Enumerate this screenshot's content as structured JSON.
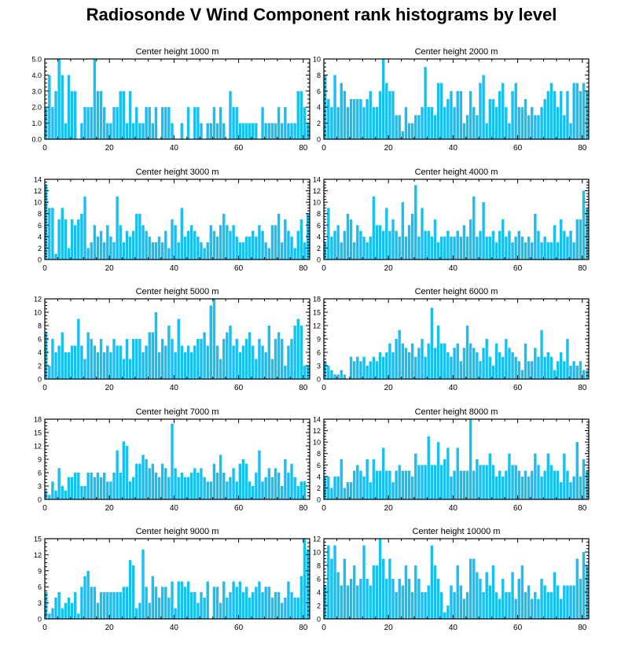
{
  "title": "Radiosonde V Wind Component rank histograms by level",
  "colors": {
    "bar": "#18bff0",
    "axis": "#000000",
    "background": "#ffffff"
  },
  "chart_data": [
    {
      "type": "bar",
      "title": "Center height 1000 m",
      "xlim": [
        0,
        82
      ],
      "ylim": [
        0,
        5
      ],
      "xticks": [
        0,
        20,
        40,
        60,
        80
      ],
      "yticks": [
        0,
        1,
        2,
        3,
        4,
        5
      ],
      "ytick_decimals": 1,
      "values": [
        2,
        4,
        2,
        3,
        5,
        4,
        1,
        4,
        3,
        3,
        0,
        1,
        2,
        2,
        2,
        5,
        3,
        3,
        2,
        1,
        1,
        2,
        2,
        3,
        3,
        1,
        3,
        1,
        2,
        1,
        1,
        2,
        2,
        1,
        2,
        0,
        2,
        2,
        2,
        1,
        0,
        0,
        1,
        0,
        2,
        0,
        2,
        2,
        1,
        0,
        1,
        1,
        2,
        1,
        2,
        1,
        0,
        3,
        2,
        2,
        1,
        1,
        1,
        1,
        1,
        1,
        0,
        2,
        1,
        1,
        1,
        1,
        2,
        1,
        2,
        1,
        1,
        1,
        3,
        3,
        2,
        1
      ]
    },
    {
      "type": "bar",
      "title": "Center height 2000 m",
      "xlim": [
        0,
        82
      ],
      "ylim": [
        0,
        10
      ],
      "xticks": [
        0,
        20,
        40,
        60,
        80
      ],
      "yticks": [
        0,
        2,
        4,
        6,
        8,
        10
      ],
      "ytick_decimals": 0,
      "values": [
        8,
        5,
        4,
        8,
        4,
        7,
        6,
        4,
        5,
        5,
        5,
        5,
        4,
        5,
        6,
        4,
        4,
        6,
        10,
        7,
        6,
        6,
        3,
        3,
        1,
        4,
        2,
        2,
        3,
        3,
        4,
        9,
        4,
        4,
        3,
        7,
        7,
        4,
        5,
        6,
        4,
        6,
        6,
        2,
        3,
        6,
        4,
        3,
        7,
        8,
        2,
        5,
        5,
        4,
        6,
        7,
        4,
        2,
        6,
        7,
        4,
        4,
        5,
        3,
        4,
        3,
        3,
        4,
        5,
        6,
        7,
        6,
        4,
        6,
        3,
        6,
        2,
        7,
        7,
        6,
        7,
        6
      ]
    },
    {
      "type": "bar",
      "title": "Center height 3000 m",
      "xlim": [
        0,
        82
      ],
      "ylim": [
        0,
        14
      ],
      "xticks": [
        0,
        20,
        40,
        60,
        80
      ],
      "yticks": [
        0,
        2,
        4,
        6,
        8,
        10,
        12,
        14
      ],
      "ytick_decimals": 0,
      "values": [
        13,
        9,
        9,
        1,
        7,
        9,
        7,
        2,
        7,
        6,
        7,
        8,
        11,
        2,
        3,
        6,
        4,
        5,
        3,
        6,
        4,
        3,
        11,
        6,
        3,
        5,
        4,
        5,
        8,
        8,
        6,
        5,
        4,
        3,
        3,
        4,
        3,
        5,
        2,
        7,
        6,
        3,
        9,
        4,
        5,
        6,
        5,
        4,
        3,
        2,
        3,
        6,
        5,
        4,
        6,
        8,
        6,
        5,
        6,
        4,
        3,
        3,
        4,
        4,
        5,
        4,
        6,
        5,
        3,
        2,
        6,
        6,
        8,
        3,
        7,
        5,
        4,
        2,
        5,
        7,
        3,
        8
      ]
    },
    {
      "type": "bar",
      "title": "Center height 4000 m",
      "xlim": [
        0,
        82
      ],
      "ylim": [
        0,
        14
      ],
      "xticks": [
        0,
        20,
        40,
        60,
        80
      ],
      "yticks": [
        0,
        2,
        4,
        6,
        8,
        10,
        12,
        14
      ],
      "ytick_decimals": 0,
      "values": [
        3,
        9,
        4,
        5,
        6,
        3,
        5,
        8,
        7,
        3,
        6,
        5,
        4,
        3,
        4,
        11,
        6,
        6,
        5,
        9,
        5,
        7,
        5,
        4,
        10,
        4,
        6,
        8,
        13,
        4,
        9,
        5,
        5,
        4,
        7,
        3,
        4,
        4,
        5,
        4,
        4,
        5,
        4,
        6,
        4,
        7,
        11,
        4,
        5,
        10,
        4,
        4,
        5,
        3,
        5,
        7,
        4,
        5,
        3,
        4,
        5,
        4,
        3,
        4,
        3,
        8,
        5,
        3,
        4,
        3,
        3,
        6,
        3,
        7,
        5,
        4,
        5,
        3,
        7,
        7,
        12,
        9
      ]
    },
    {
      "type": "bar",
      "title": "Center height 5000 m",
      "xlim": [
        0,
        82
      ],
      "ylim": [
        0,
        12
      ],
      "xticks": [
        0,
        20,
        40,
        60,
        80
      ],
      "yticks": [
        0,
        2,
        4,
        6,
        8,
        10,
        12
      ],
      "ytick_decimals": 0,
      "values": [
        7,
        2,
        6,
        4,
        5,
        7,
        4,
        4,
        5,
        5,
        9,
        5,
        3,
        7,
        6,
        5,
        4,
        6,
        4,
        5,
        4,
        6,
        5,
        5,
        3,
        6,
        3,
        6,
        6,
        6,
        4,
        5,
        7,
        7,
        10,
        4,
        6,
        5,
        8,
        6,
        4,
        9,
        5,
        4,
        5,
        4,
        5,
        6,
        6,
        7,
        5,
        11,
        12,
        5,
        3,
        6,
        7,
        8,
        5,
        6,
        4,
        5,
        6,
        7,
        5,
        3,
        6,
        5,
        4,
        8,
        3,
        6,
        7,
        6,
        2,
        5,
        6,
        8,
        9,
        8,
        2,
        2
      ]
    },
    {
      "type": "bar",
      "title": "Center height 6000 m",
      "xlim": [
        0,
        82
      ],
      "ylim": [
        0,
        18
      ],
      "xticks": [
        0,
        20,
        40,
        60,
        80
      ],
      "yticks": [
        0,
        3,
        6,
        9,
        12,
        15,
        18
      ],
      "ytick_decimals": 0,
      "values": [
        4,
        3,
        2,
        1,
        1,
        2,
        1,
        0,
        5,
        4,
        5,
        4,
        5,
        3,
        4,
        5,
        4,
        6,
        5,
        6,
        8,
        6,
        9,
        11,
        8,
        7,
        6,
        8,
        5,
        7,
        9,
        5,
        8,
        16,
        7,
        12,
        8,
        8,
        6,
        5,
        7,
        8,
        4,
        7,
        12,
        8,
        7,
        6,
        4,
        7,
        9,
        5,
        3,
        8,
        6,
        5,
        9,
        7,
        6,
        5,
        4,
        2,
        8,
        4,
        4,
        7,
        5,
        11,
        5,
        6,
        5,
        2,
        4,
        6,
        4,
        9,
        3,
        4,
        3,
        4,
        2,
        2
      ]
    },
    {
      "type": "bar",
      "title": "Center height 7000 m",
      "xlim": [
        0,
        82
      ],
      "ylim": [
        0,
        18
      ],
      "xticks": [
        0,
        20,
        40,
        60,
        80
      ],
      "yticks": [
        0,
        3,
        6,
        9,
        12,
        15,
        18
      ],
      "ytick_decimals": 0,
      "values": [
        2,
        1,
        4,
        2,
        7,
        3,
        2,
        5,
        5,
        6,
        6,
        3,
        3,
        6,
        6,
        5,
        6,
        5,
        6,
        4,
        4,
        6,
        11,
        6,
        13,
        12,
        4,
        5,
        8,
        8,
        10,
        9,
        7,
        8,
        6,
        5,
        8,
        7,
        5,
        17,
        7,
        5,
        6,
        5,
        5,
        6,
        7,
        6,
        7,
        5,
        4,
        4,
        8,
        6,
        10,
        6,
        4,
        5,
        7,
        4,
        8,
        9,
        8,
        4,
        3,
        6,
        11,
        4,
        5,
        7,
        5,
        7,
        6,
        3,
        9,
        6,
        8,
        5,
        3,
        4,
        4,
        0
      ]
    },
    {
      "type": "bar",
      "title": "Center height 8000 m",
      "xlim": [
        0,
        82
      ],
      "ylim": [
        0,
        14
      ],
      "xticks": [
        0,
        20,
        40,
        60,
        80
      ],
      "yticks": [
        0,
        2,
        4,
        6,
        8,
        10,
        12,
        14
      ],
      "ytick_decimals": 0,
      "values": [
        4,
        4,
        2,
        4,
        4,
        7,
        2,
        3,
        3,
        5,
        6,
        5,
        4,
        7,
        3,
        7,
        5,
        5,
        9,
        5,
        5,
        3,
        5,
        6,
        5,
        5,
        5,
        4,
        8,
        6,
        6,
        6,
        11,
        6,
        6,
        10,
        6,
        7,
        9,
        4,
        5,
        9,
        5,
        5,
        5,
        14,
        5,
        7,
        6,
        6,
        6,
        8,
        6,
        4,
        5,
        4,
        5,
        8,
        6,
        6,
        5,
        4,
        5,
        4,
        5,
        8,
        6,
        4,
        5,
        8,
        6,
        5,
        5,
        3,
        8,
        5,
        3,
        4,
        10,
        4,
        7,
        5
      ]
    },
    {
      "type": "bar",
      "title": "Center height 9000 m",
      "xlim": [
        0,
        82
      ],
      "ylim": [
        0,
        15
      ],
      "xticks": [
        0,
        20,
        40,
        60,
        80
      ],
      "yticks": [
        0,
        3,
        6,
        9,
        12,
        15
      ],
      "ytick_decimals": 0,
      "values": [
        5,
        1,
        2,
        4,
        5,
        2,
        3,
        4,
        3,
        5,
        1,
        6,
        8,
        9,
        6,
        6,
        3,
        5,
        5,
        5,
        5,
        5,
        5,
        5,
        6,
        6,
        11,
        10,
        2,
        3,
        13,
        6,
        3,
        8,
        6,
        4,
        6,
        6,
        4,
        7,
        2,
        7,
        7,
        6,
        7,
        5,
        5,
        3,
        5,
        4,
        7,
        0,
        6,
        6,
        3,
        7,
        4,
        5,
        7,
        6,
        7,
        5,
        6,
        4,
        5,
        6,
        7,
        5,
        6,
        6,
        4,
        5,
        5,
        3,
        4,
        7,
        5,
        4,
        4,
        8,
        15,
        13
      ]
    },
    {
      "type": "bar",
      "title": "Center height 10000 m",
      "xlim": [
        0,
        82
      ],
      "ylim": [
        0,
        12
      ],
      "xticks": [
        0,
        20,
        40,
        60,
        80
      ],
      "yticks": [
        0,
        2,
        4,
        6,
        8,
        10,
        12
      ],
      "ytick_decimals": 0,
      "values": [
        5,
        11,
        9,
        11,
        7,
        5,
        9,
        5,
        6,
        8,
        5,
        6,
        11,
        6,
        5,
        8,
        8,
        12,
        9,
        6,
        9,
        6,
        4,
        6,
        5,
        8,
        6,
        4,
        8,
        6,
        4,
        4,
        5,
        11,
        8,
        6,
        4,
        1,
        2,
        5,
        4,
        8,
        5,
        3,
        4,
        9,
        9,
        7,
        6,
        4,
        7,
        5,
        8,
        4,
        3,
        6,
        4,
        4,
        7,
        3,
        6,
        8,
        4,
        5,
        3,
        4,
        3,
        6,
        5,
        4,
        4,
        7,
        5,
        3,
        5,
        5,
        5,
        5,
        9,
        6,
        10,
        8
      ]
    }
  ]
}
